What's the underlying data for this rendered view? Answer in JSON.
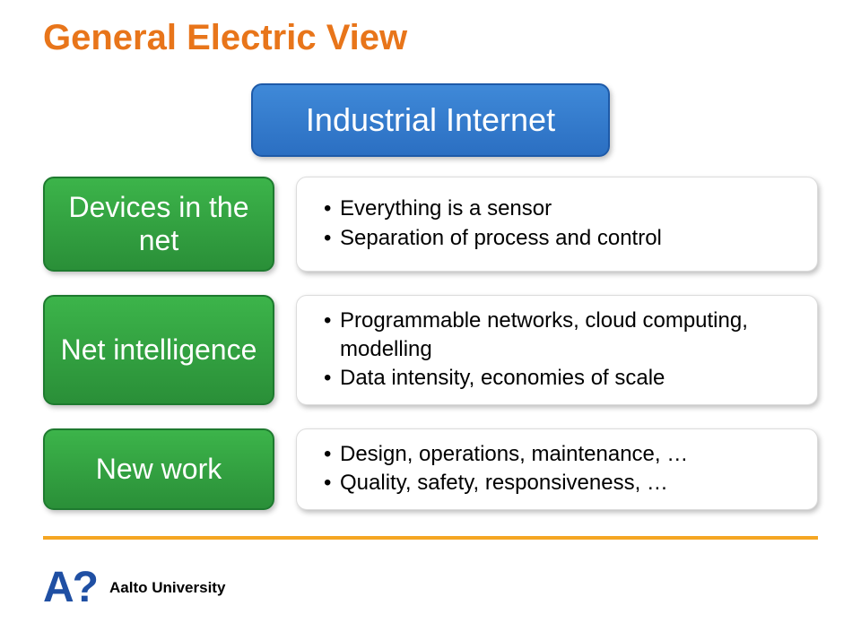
{
  "title": {
    "text": "General Electric View",
    "color": "#e8751a"
  },
  "header": {
    "text": "Industrial Internet",
    "bg_top": "#3f89d8",
    "bg_bottom": "#2b6fc2",
    "border": "#1e5aa8"
  },
  "rows": [
    {
      "label": "Devices in the net",
      "bg_top": "#3cb44a",
      "bg_bottom": "#2a8f38",
      "border": "#1e7a2f",
      "items": [
        "Everything is a sensor",
        "Separation of process and control"
      ]
    },
    {
      "label": "Net intelligence",
      "bg_top": "#3cb44a",
      "bg_bottom": "#2a8f38",
      "border": "#1e7a2f",
      "items": [
        "Programmable networks, cloud computing, modelling",
        "Data intensity, economies of scale"
      ]
    },
    {
      "label": "New work",
      "bg_top": "#3cb44a",
      "bg_bottom": "#2a8f38",
      "border": "#1e7a2f",
      "items": [
        "Design, operations, maintenance, …",
        "Quality, safety, responsiveness, …"
      ]
    }
  ],
  "detail_box": {
    "bg": "#ffffff",
    "border": "#dcdcdc"
  },
  "rule_color": "#f5a623",
  "logo": {
    "mark": "A?",
    "name": "Aalto University",
    "mark_color": "#1f4fa3"
  }
}
